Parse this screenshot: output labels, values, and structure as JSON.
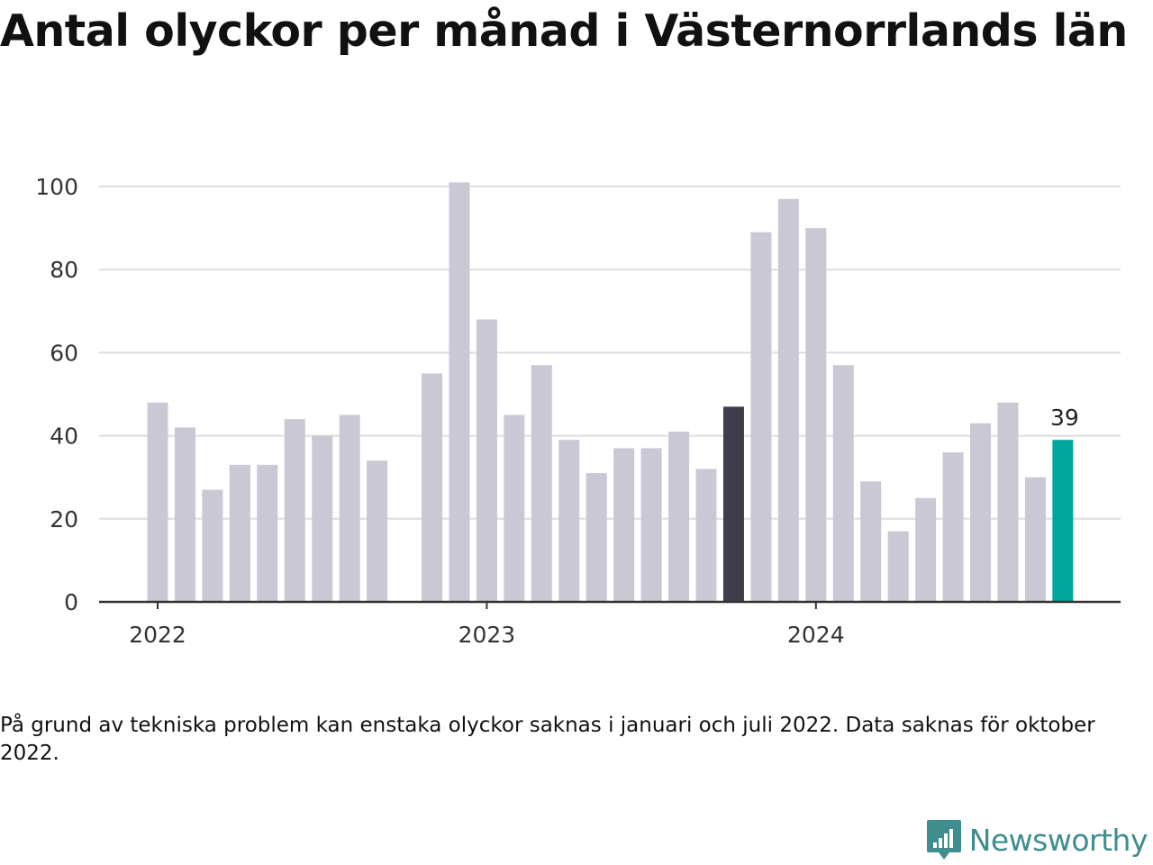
{
  "title": "Antal olyckor per månad i Västernorrlands län",
  "note": "På grund av tekniska problem kan enstaka olyckor saknas i januari och juli 2022. Data saknas för oktober 2022.",
  "brand": {
    "name": "Newsworthy",
    "icon": "newsworthy-logo-icon",
    "color": "#3e8d8f"
  },
  "colors": {
    "default": "#c9c8d4",
    "highlight": "#3e3d4b",
    "latest": "#00a89c",
    "grid": "#dddddd",
    "axis": "#333333"
  },
  "chart_data": {
    "type": "bar",
    "x": [
      "2022-01",
      "2022-02",
      "2022-03",
      "2022-04",
      "2022-05",
      "2022-06",
      "2022-07",
      "2022-08",
      "2022-09",
      "2022-10",
      "2022-11",
      "2022-12",
      "2023-01",
      "2023-02",
      "2023-03",
      "2023-04",
      "2023-05",
      "2023-06",
      "2023-07",
      "2023-08",
      "2023-09",
      "2023-10",
      "2023-11",
      "2023-12",
      "2024-01",
      "2024-02",
      "2024-03",
      "2024-04",
      "2024-05",
      "2024-06",
      "2024-07",
      "2024-08",
      "2024-09",
      "2024-10"
    ],
    "values": [
      48,
      42,
      27,
      33,
      33,
      44,
      40,
      45,
      34,
      null,
      55,
      101,
      68,
      45,
      57,
      39,
      31,
      37,
      37,
      41,
      32,
      47,
      89,
      97,
      90,
      57,
      29,
      17,
      25,
      36,
      43,
      48,
      30,
      39
    ],
    "highlight_index": 21,
    "latest_index": 33,
    "data_labels": [
      {
        "index": 33,
        "text": "39"
      }
    ],
    "ylim": [
      0,
      100
    ],
    "yticks": [
      0,
      20,
      40,
      60,
      80,
      100
    ],
    "xticks": [
      "2022",
      "2023",
      "2024"
    ],
    "grid": true
  }
}
